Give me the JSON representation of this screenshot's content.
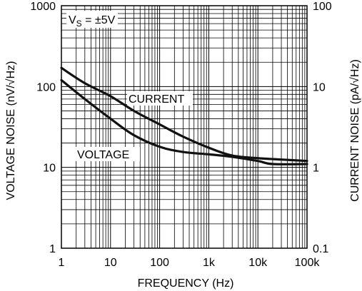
{
  "chart_data": {
    "type": "line",
    "title": "",
    "xlabel": "FREQUENCY (Hz)",
    "ylabel_left": "VOLTAGE NOISE (nV/√Hz)",
    "ylabel_right": "CURRENT NOISE (pA/√Hz)",
    "x_scale": "log",
    "y_scale": "log",
    "xlim": [
      1,
      100000
    ],
    "ylim_left": [
      1,
      1000
    ],
    "ylim_right": [
      0.1,
      100
    ],
    "grid": true,
    "x_ticks": [
      {
        "value": 1,
        "label": "1"
      },
      {
        "value": 10,
        "label": "10"
      },
      {
        "value": 100,
        "label": "100"
      },
      {
        "value": 1000,
        "label": "1k"
      },
      {
        "value": 10000,
        "label": "10k"
      },
      {
        "value": 100000,
        "label": "100k"
      }
    ],
    "y_ticks_left": [
      {
        "value": 1,
        "label": "1"
      },
      {
        "value": 10,
        "label": "10"
      },
      {
        "value": 100,
        "label": "100"
      },
      {
        "value": 1000,
        "label": "1000"
      }
    ],
    "y_ticks_right": [
      {
        "value": 0.1,
        "label": "0.1"
      },
      {
        "value": 1,
        "label": "1"
      },
      {
        "value": 10,
        "label": "10"
      },
      {
        "value": 100,
        "label": "100"
      }
    ],
    "annotations": {
      "condition_main": "V",
      "condition_sub": "S",
      "condition_rest": " = ±5V"
    },
    "series": [
      {
        "name": "CURRENT",
        "axis": "right",
        "x": [
          1,
          3,
          10,
          30,
          100,
          300,
          1000,
          3000,
          10000,
          30000,
          100000
        ],
        "y": [
          17,
          11,
          7.6,
          5,
          3.4,
          2.4,
          1.75,
          1.4,
          1.3,
          1.25,
          1.2
        ]
      },
      {
        "name": "VOLTAGE",
        "axis": "left",
        "x": [
          1,
          3,
          10,
          30,
          100,
          300,
          1000,
          3000,
          10000,
          20000,
          100000
        ],
        "y": [
          120,
          70,
          40,
          25,
          18,
          15.5,
          14.5,
          13.5,
          12,
          11,
          11
        ]
      }
    ]
  }
}
